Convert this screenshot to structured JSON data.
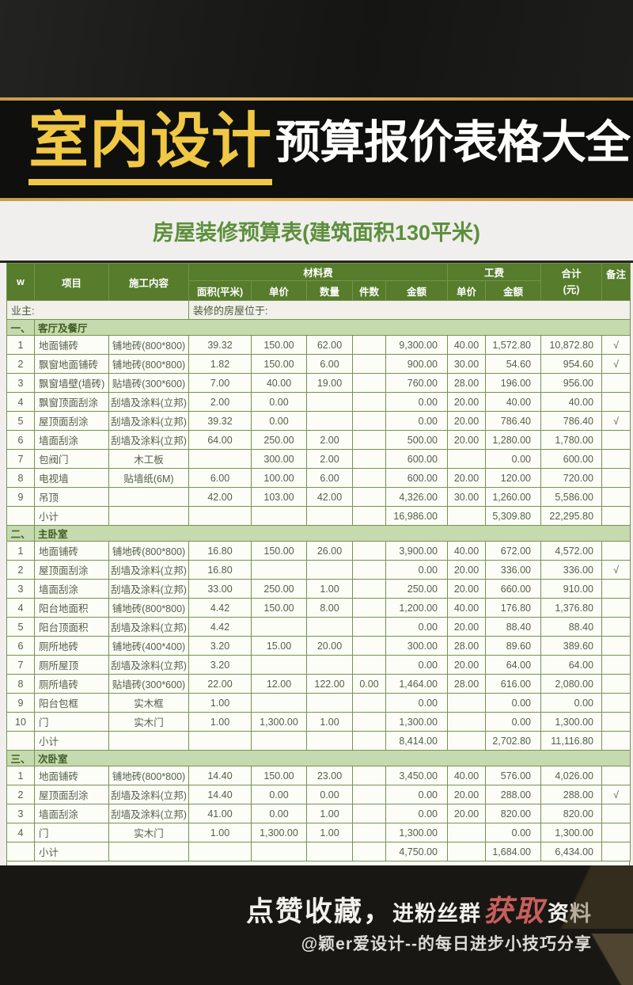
{
  "banner": {
    "title_highlight": "室内设计",
    "title_rest": "预算报价表格大全"
  },
  "subtitle": "房屋装修预算表(建筑面积130平米)",
  "table": {
    "owner_label": "业主:",
    "location_label": "装修的房屋位于:",
    "header": {
      "col_w": "w",
      "item": "项目",
      "work": "施工内容",
      "material_group": "材料费",
      "labor_group": "工费",
      "total_line1": "合计",
      "total_line2": "(元)",
      "note": "备注",
      "area": "面积(平米)",
      "unit_price": "单价",
      "qty": "数量",
      "pieces": "件数",
      "amount": "金额",
      "labor_unit_price": "单价",
      "labor_amount": "金额"
    },
    "sections": [
      {
        "index": "一、",
        "name": "客厅及餐厅",
        "rows": [
          [
            "1",
            "地面铺砖",
            "铺地砖(800*800)",
            "39.32",
            "150.00",
            "62.00",
            "",
            "9,300.00",
            "40.00",
            "1,572.80",
            "10,872.80",
            "√"
          ],
          [
            "2",
            "飘窗地面铺砖",
            "铺地砖(800*800)",
            "1.82",
            "150.00",
            "6.00",
            "",
            "900.00",
            "30.00",
            "54.60",
            "954.60",
            "√"
          ],
          [
            "3",
            "飘窗墙壁(墙砖)",
            "贴墙砖(300*600)",
            "7.00",
            "40.00",
            "19.00",
            "",
            "760.00",
            "28.00",
            "196.00",
            "956.00",
            ""
          ],
          [
            "4",
            "飘窗顶面刮涂",
            "刮墙及涂料(立邦)",
            "2.00",
            "0.00",
            "",
            "",
            "0.00",
            "20.00",
            "40.00",
            "40.00",
            ""
          ],
          [
            "5",
            "屋顶面刮涂",
            "刮墙及涂料(立邦)",
            "39.32",
            "0.00",
            "",
            "",
            "0.00",
            "20.00",
            "786.40",
            "786.40",
            "√"
          ],
          [
            "6",
            "墙面刮涂",
            "刮墙及涂料(立邦)",
            "64.00",
            "250.00",
            "2.00",
            "",
            "500.00",
            "20.00",
            "1,280.00",
            "1,780.00",
            ""
          ],
          [
            "7",
            "包阀门",
            "木工板",
            "",
            "300.00",
            "2.00",
            "",
            "600.00",
            "",
            "0.00",
            "600.00",
            ""
          ],
          [
            "8",
            "电视墙",
            "贴墙纸(6M)",
            "6.00",
            "100.00",
            "6.00",
            "",
            "600.00",
            "20.00",
            "120.00",
            "720.00",
            ""
          ],
          [
            "9",
            "吊顶",
            "",
            "42.00",
            "103.00",
            "42.00",
            "",
            "4,326.00",
            "30.00",
            "1,260.00",
            "5,586.00",
            ""
          ]
        ],
        "subtotal": [
          "",
          "小计",
          "",
          "",
          "",
          "",
          "",
          "16,986.00",
          "",
          "5,309.80",
          "22,295.80",
          ""
        ]
      },
      {
        "index": "二、",
        "name": "主卧室",
        "rows": [
          [
            "1",
            "地面铺砖",
            "铺地砖(800*800)",
            "16.80",
            "150.00",
            "26.00",
            "",
            "3,900.00",
            "40.00",
            "672.00",
            "4,572.00",
            ""
          ],
          [
            "2",
            "屋顶面刮涂",
            "刮墙及涂料(立邦)",
            "16.80",
            "",
            "",
            "",
            "0.00",
            "20.00",
            "336.00",
            "336.00",
            "√"
          ],
          [
            "3",
            "墙面刮涂",
            "刮墙及涂料(立邦)",
            "33.00",
            "250.00",
            "1.00",
            "",
            "250.00",
            "20.00",
            "660.00",
            "910.00",
            ""
          ],
          [
            "4",
            "阳台地面积",
            "铺地砖(800*800)",
            "4.42",
            "150.00",
            "8.00",
            "",
            "1,200.00",
            "40.00",
            "176.80",
            "1,376.80",
            ""
          ],
          [
            "5",
            "阳台顶面积",
            "刮墙及涂料(立邦)",
            "4.42",
            "",
            "",
            "",
            "0.00",
            "20.00",
            "88.40",
            "88.40",
            ""
          ],
          [
            "6",
            "厕所地砖",
            "铺地砖(400*400)",
            "3.20",
            "15.00",
            "20.00",
            "",
            "300.00",
            "28.00",
            "89.60",
            "389.60",
            ""
          ],
          [
            "7",
            "厕所屋顶",
            "刮墙及涂料(立邦)",
            "3.20",
            "",
            "",
            "",
            "0.00",
            "20.00",
            "64.00",
            "64.00",
            ""
          ],
          [
            "8",
            "厕所墙砖",
            "贴墙砖(300*600)",
            "22.00",
            "12.00",
            "122.00",
            "0.00",
            "1,464.00",
            "28.00",
            "616.00",
            "2,080.00",
            ""
          ],
          [
            "9",
            "阳台包框",
            "实木框",
            "1.00",
            "",
            "",
            "",
            "0.00",
            "",
            "0.00",
            "0.00",
            ""
          ],
          [
            "10",
            "门",
            "实木门",
            "1.00",
            "1,300.00",
            "1.00",
            "",
            "1,300.00",
            "",
            "0.00",
            "1,300.00",
            ""
          ]
        ],
        "subtotal": [
          "",
          "小计",
          "",
          "",
          "",
          "",
          "",
          "8,414.00",
          "",
          "2,702.80",
          "11,116.80",
          ""
        ]
      },
      {
        "index": "三、",
        "name": "次卧室",
        "rows": [
          [
            "1",
            "地面铺砖",
            "铺地砖(800*800)",
            "14.40",
            "150.00",
            "23.00",
            "",
            "3,450.00",
            "40.00",
            "576.00",
            "4,026.00",
            ""
          ],
          [
            "2",
            "屋顶面刮涂",
            "刮墙及涂料(立邦)",
            "14.40",
            "0.00",
            "0.00",
            "",
            "0.00",
            "20.00",
            "288.00",
            "288.00",
            "√"
          ],
          [
            "3",
            "墙面刮涂",
            "刮墙及涂料(立邦)",
            "41.00",
            "0.00",
            "1.00",
            "",
            "0.00",
            "20.00",
            "820.00",
            "820.00",
            ""
          ],
          [
            "4",
            "门",
            "实木门",
            "1.00",
            "1,300.00",
            "1.00",
            "",
            "1,300.00",
            "",
            "0.00",
            "1,300.00",
            ""
          ]
        ],
        "subtotal": [
          "",
          "小计",
          "",
          "",
          "",
          "",
          "",
          "4,750.00",
          "",
          "1,684.00",
          "6,434.00",
          ""
        ]
      }
    ]
  },
  "footer": {
    "line1_part1": "点赞收藏，",
    "line1_part2": "进粉丝群",
    "line1_highlight": "获取",
    "line1_part3": "资料",
    "line2": "@颖er爱设计--的每日进步小技巧分享"
  },
  "colors": {
    "accent_yellow": "#f0c845",
    "gold_line": "#d9a84e",
    "header_green": "#567c2c",
    "section_green": "#c5daae",
    "border_green": "#76934e",
    "title_green": "#5d8f3c",
    "highlight_red": "#c75f5c"
  }
}
